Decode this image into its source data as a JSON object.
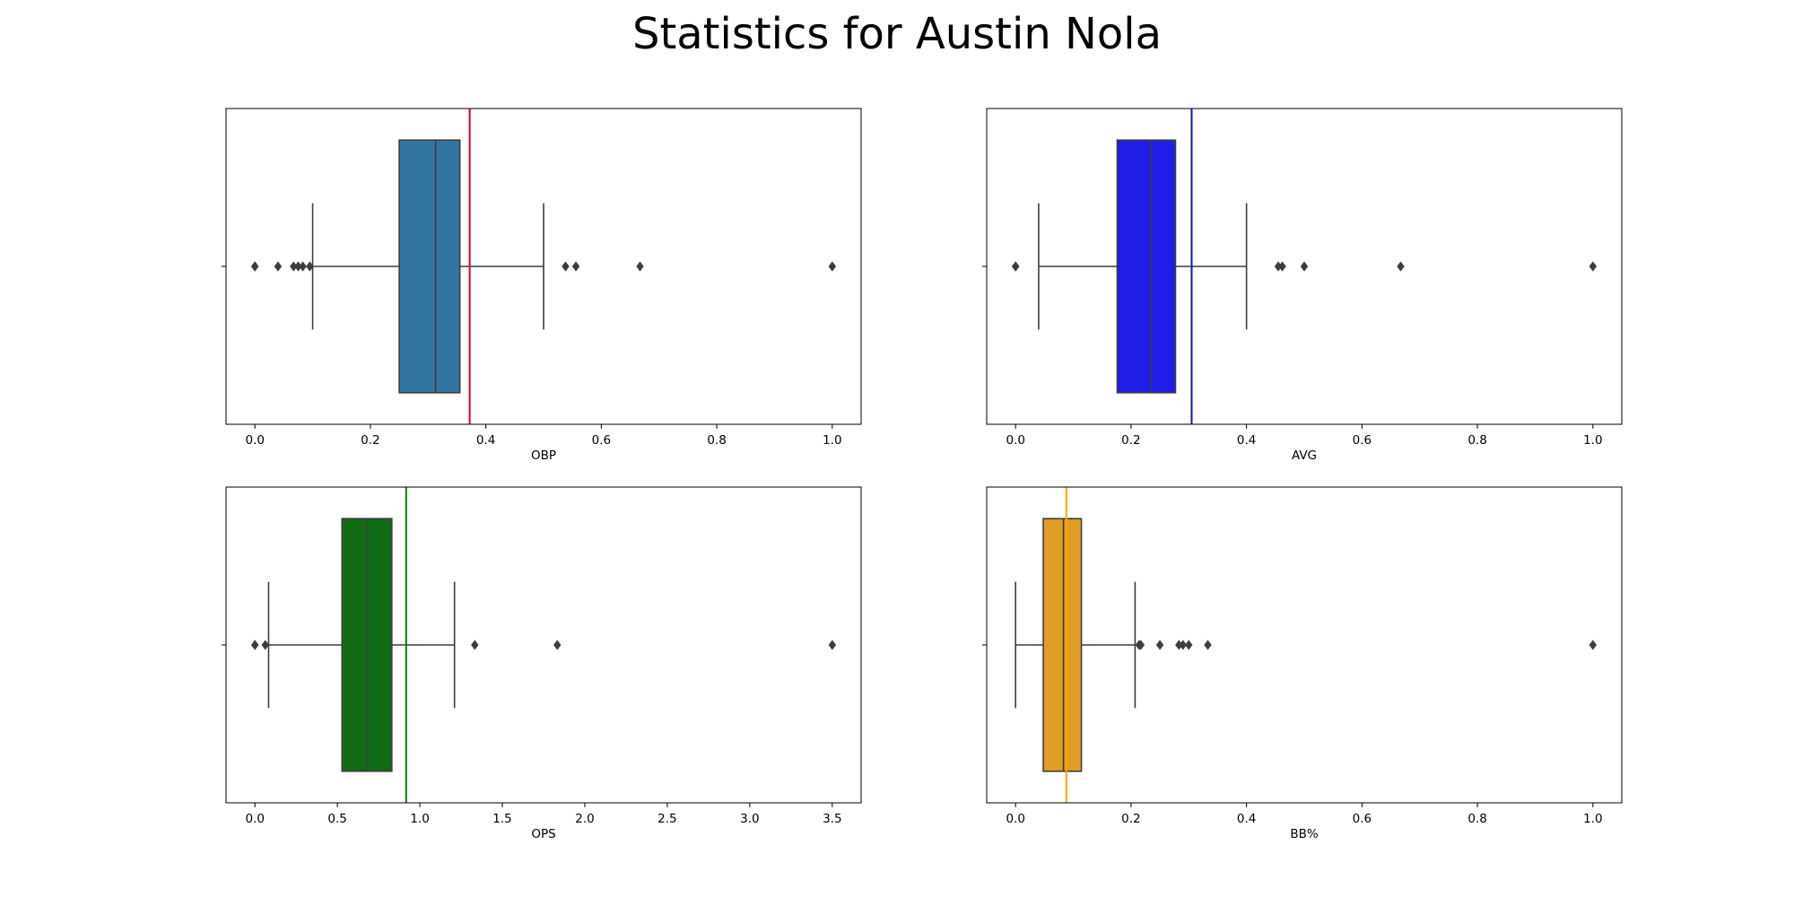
{
  "figure": {
    "title": "Statistics for Austin Nola"
  },
  "chart_data": [
    {
      "type": "box",
      "xlabel": "OBP",
      "xlim": [
        -0.05,
        1.05
      ],
      "xticks": [
        0.0,
        0.2,
        0.4,
        0.6,
        0.8,
        1.0
      ],
      "xtick_labels": [
        "0.0",
        "0.2",
        "0.4",
        "0.6",
        "0.8",
        "1.0"
      ],
      "box_color": "#3274a1",
      "whisker_low": 0.1,
      "q1": 0.25,
      "median": 0.313,
      "q3": 0.355,
      "whisker_high": 0.5,
      "outliers": [
        0.0,
        0.0,
        0.04,
        0.067,
        0.075,
        0.083,
        0.095,
        0.538,
        0.556,
        0.667,
        1.0
      ],
      "reference_line": {
        "value": 0.372,
        "color": "#e4001c"
      }
    },
    {
      "type": "box",
      "xlabel": "AVG",
      "xlim": [
        -0.05,
        1.05
      ],
      "xticks": [
        0.0,
        0.2,
        0.4,
        0.6,
        0.8,
        1.0
      ],
      "xtick_labels": [
        "0.0",
        "0.2",
        "0.4",
        "0.6",
        "0.8",
        "1.0"
      ],
      "box_color": "#1f1de6",
      "whisker_low": 0.04,
      "q1": 0.176,
      "median": 0.235,
      "q3": 0.277,
      "whisker_high": 0.4,
      "outliers": [
        0.0,
        0.0,
        0.455,
        0.462,
        0.5,
        0.667,
        1.0
      ],
      "reference_line": {
        "value": 0.305,
        "color": "#1010d0"
      }
    },
    {
      "type": "box",
      "xlabel": "OPS",
      "xlim": [
        -0.175,
        3.675
      ],
      "xticks": [
        0.0,
        0.5,
        1.0,
        1.5,
        2.0,
        2.5,
        3.0,
        3.5
      ],
      "xtick_labels": [
        "0.0",
        "0.5",
        "1.0",
        "1.5",
        "2.0",
        "2.5",
        "3.0",
        "3.5"
      ],
      "box_color": "#116b14",
      "whisker_low": 0.083,
      "q1": 0.528,
      "median": 0.683,
      "q3": 0.83,
      "whisker_high": 1.21,
      "outliers": [
        0.0,
        0.0,
        0.063,
        1.333,
        1.833,
        3.5
      ],
      "reference_line": {
        "value": 0.917,
        "color": "#008000"
      }
    },
    {
      "type": "box",
      "xlabel": "BB%",
      "xlim": [
        -0.05,
        1.05
      ],
      "xticks": [
        0.0,
        0.2,
        0.4,
        0.6,
        0.8,
        1.0
      ],
      "xtick_labels": [
        "0.0",
        "0.2",
        "0.4",
        "0.6",
        "0.8",
        "1.0"
      ],
      "box_color": "#e09c24",
      "whisker_low": 0.0,
      "q1": 0.048,
      "median": 0.083,
      "q3": 0.114,
      "whisker_high": 0.207,
      "outliers": [
        0.214,
        0.217,
        0.25,
        0.283,
        0.29,
        0.3,
        0.333,
        1.0
      ],
      "reference_line": {
        "value": 0.088,
        "color": "#ffa500"
      }
    }
  ]
}
